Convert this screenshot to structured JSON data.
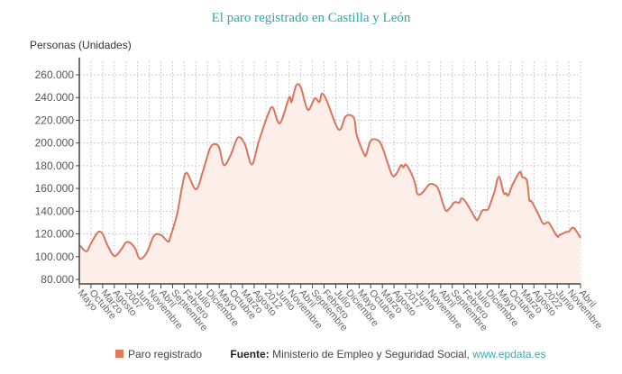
{
  "chart_data": {
    "type": "area",
    "title": "El paro registrado en Castilla y León",
    "ylabel": "Personas (Unidades)",
    "xlabel": "",
    "ylim": [
      75000,
      272000
    ],
    "yticks": [
      80000,
      100000,
      120000,
      140000,
      160000,
      180000,
      200000,
      220000,
      240000,
      260000
    ],
    "ytick_labels": [
      "80.000",
      "100.000",
      "120.000",
      "140.000",
      "160.000",
      "180.000",
      "200.000",
      "220.000",
      "240.000",
      "260.000"
    ],
    "xrange": [
      "2005-05",
      "2023-04"
    ],
    "xtick_labels": [
      "Mayo",
      "Octubre",
      "Marzo",
      "Agosto",
      "2007",
      "Junio",
      "Noviembre",
      "Abril",
      "Septiembre",
      "Febrero",
      "Julio",
      "Diciembre",
      "Mayo",
      "Octubre",
      "Marzo",
      "Agosto",
      "2012",
      "Junio",
      "Noviembre",
      "Abril",
      "Septiembre",
      "Febrero",
      "Julio",
      "Diciembre",
      "Mayo",
      "Octubre",
      "Marzo",
      "Agosto",
      "2017",
      "Junio",
      "Noviembre",
      "Abril",
      "Septiembre",
      "Febrero",
      "Julio",
      "Diciembre",
      "Mayo",
      "Octubre",
      "Marzo",
      "Agosto",
      "2022",
      "Junio",
      "Noviembre",
      "Abril"
    ],
    "grid": true,
    "legend_position": "bottom",
    "series": [
      {
        "name": "Paro registrado",
        "color": "#d9755a",
        "fill": "#fdeeea",
        "x": [
          "2005-05",
          "2005-08",
          "2005-10",
          "2006-01",
          "2006-03",
          "2006-05",
          "2006-08",
          "2006-11",
          "2007-01",
          "2007-03",
          "2007-05",
          "2007-07",
          "2007-10",
          "2008-01",
          "2008-04",
          "2008-07",
          "2008-08",
          "2008-11",
          "2009-01",
          "2009-03",
          "2009-07",
          "2009-10",
          "2010-01",
          "2010-03",
          "2010-05",
          "2010-07",
          "2010-10",
          "2011-01",
          "2011-04",
          "2011-07",
          "2011-10",
          "2012-02",
          "2012-04",
          "2012-07",
          "2012-11",
          "2012-12",
          "2013-02",
          "2013-04",
          "2013-07",
          "2013-10",
          "2013-12",
          "2014-01",
          "2014-03",
          "2014-07",
          "2014-09",
          "2014-11",
          "2015-01",
          "2015-03",
          "2015-04",
          "2015-07",
          "2015-08",
          "2015-10",
          "2016-01",
          "2016-03",
          "2016-07",
          "2016-09",
          "2016-11",
          "2016-12",
          "2017-01",
          "2017-03",
          "2017-05",
          "2017-06",
          "2017-08",
          "2017-11",
          "2018-01",
          "2018-03",
          "2018-06",
          "2018-08",
          "2018-10",
          "2018-12",
          "2019-01",
          "2019-03",
          "2019-07",
          "2019-08",
          "2019-10",
          "2019-12",
          "2020-01",
          "2020-03",
          "2020-05",
          "2020-07",
          "2020-08",
          "2020-09",
          "2020-11",
          "2021-02",
          "2021-03",
          "2021-05",
          "2021-06",
          "2021-07",
          "2021-10",
          "2021-12",
          "2022-02",
          "2022-03",
          "2022-06",
          "2022-07",
          "2022-10",
          "2022-11",
          "2023-01",
          "2023-04"
        ],
        "values": [
          110400,
          104600,
          111700,
          121500,
          120000,
          110400,
          100600,
          106400,
          112500,
          112000,
          107000,
          98000,
          103800,
          118300,
          119000,
          113300,
          117000,
          138000,
          160600,
          173800,
          159300,
          175000,
          195000,
          199000,
          196000,
          180600,
          189700,
          204800,
          199000,
          181000,
          201600,
          225400,
          231200,
          217400,
          240000,
          236000,
          250500,
          249000,
          229300,
          239200,
          236000,
          243400,
          238000,
          216200,
          212000,
          222700,
          224600,
          221000,
          206900,
          191000,
          189500,
          202000,
          202500,
          196300,
          172500,
          173000,
          180500,
          178500,
          181000,
          175000,
          164600,
          155300,
          156000,
          163300,
          163500,
          159300,
          141300,
          143000,
          148000,
          147500,
          151400,
          147500,
          133400,
          133000,
          140800,
          141000,
          144800,
          156700,
          170400,
          156100,
          156000,
          154000,
          164000,
          174600,
          170000,
          167000,
          150000,
          148600,
          136900,
          129000,
          130300,
          128000,
          117800,
          119000,
          121800,
          122000,
          125400,
          116500
        ]
      }
    ]
  },
  "legend": {
    "series_label": "Paro registrado",
    "source_label": "Fuente:",
    "source_text": "Ministerio de Empleo y Seguridad Social,",
    "source_link": "www.epdata.es"
  }
}
